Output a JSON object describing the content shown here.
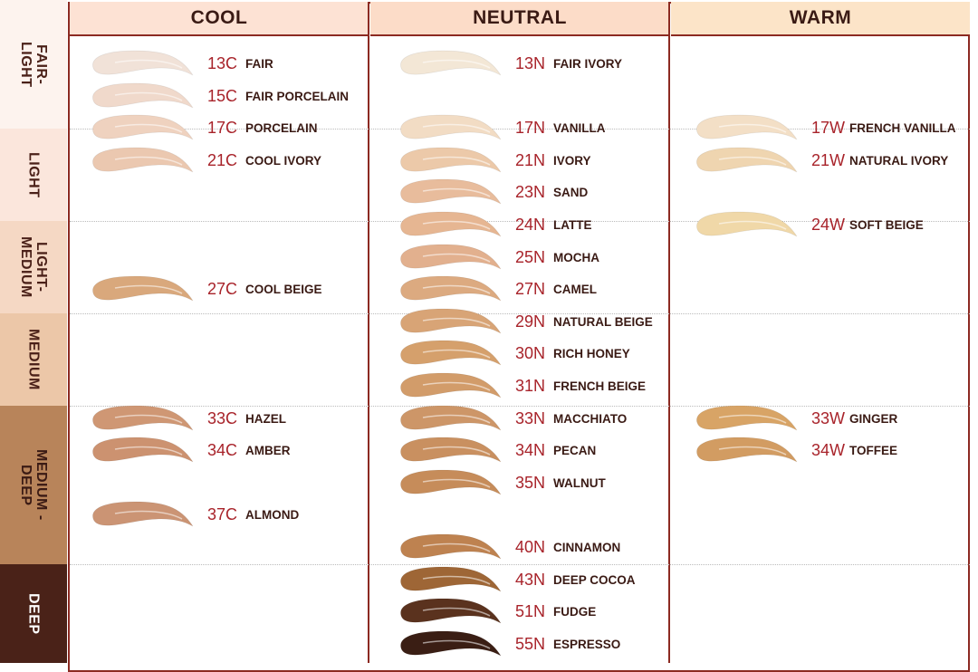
{
  "columns": [
    "COOL",
    "NEUTRAL",
    "WARM"
  ],
  "categories": [
    {
      "label": "FAIR-\nLIGHT",
      "color": "#fdf3ee",
      "text_color": "#4a2018"
    },
    {
      "label": "LIGHT",
      "color": "#fbe6dc",
      "text_color": "#4a2018"
    },
    {
      "label": "LIGHT-\nMEDIUM",
      "color": "#f5d8c4",
      "text_color": "#4a2018"
    },
    {
      "label": "MEDIUM",
      "color": "#ecc7a8",
      "text_color": "#4a2018"
    },
    {
      "label": "MEDIUM -\nDEEP",
      "color": "#b8845a",
      "text_color": "#3a1a14"
    },
    {
      "label": "DEEP",
      "color": "#4a2218",
      "text_color": "#ffffff"
    }
  ],
  "header_colors": [
    "#fde2d4",
    "#fcdcc8",
    "#fce4c8"
  ],
  "accent": "#a8232a",
  "shades": {
    "cool": [
      {
        "code": "13C",
        "name": "FAIR",
        "color": "#f1e2d8"
      },
      {
        "code": "15C",
        "name": "FAIR PORCELAIN",
        "color": "#f0d9cb"
      },
      {
        "code": "17C",
        "name": "PORCELAIN",
        "color": "#efd2bf"
      },
      {
        "code": "21C",
        "name": "COOL IVORY",
        "color": "#ebc8b0"
      },
      {
        "code": "27C",
        "name": "COOL BEIGE",
        "color": "#d9a87c"
      },
      {
        "code": "33C",
        "name": "HAZEL",
        "color": "#cf9774"
      },
      {
        "code": "34C",
        "name": "AMBER",
        "color": "#cc9270"
      },
      {
        "code": "37C",
        "name": "ALMOND",
        "color": "#cb9474"
      }
    ],
    "neutral": [
      {
        "code": "13N",
        "name": "FAIR IVORY",
        "color": "#f3e7d6"
      },
      {
        "code": "17N",
        "name": "VANILLA",
        "color": "#f2dcc4"
      },
      {
        "code": "21N",
        "name": "IVORY",
        "color": "#ecc9a9"
      },
      {
        "code": "23N",
        "name": "SAND",
        "color": "#e8bc9c"
      },
      {
        "code": "24N",
        "name": "LATTE",
        "color": "#e6b692"
      },
      {
        "code": "25N",
        "name": "MOCHA",
        "color": "#e2b08e"
      },
      {
        "code": "27N",
        "name": "CAMEL",
        "color": "#dcaa80"
      },
      {
        "code": "29N",
        "name": "NATURAL BEIGE",
        "color": "#d8a476"
      },
      {
        "code": "30N",
        "name": "RICH HONEY",
        "color": "#d5a06c"
      },
      {
        "code": "31N",
        "name": "FRENCH BEIGE",
        "color": "#d29c6a"
      },
      {
        "code": "33N",
        "name": "MACCHIATO",
        "color": "#cd9668"
      },
      {
        "code": "34N",
        "name": "PECAN",
        "color": "#c99060"
      },
      {
        "code": "35N",
        "name": "WALNUT",
        "color": "#c68c5a"
      },
      {
        "code": "40N",
        "name": "CINNAMON",
        "color": "#be8250"
      },
      {
        "code": "43N",
        "name": "DEEP COCOA",
        "color": "#9e6636"
      },
      {
        "code": "51N",
        "name": "FUDGE",
        "color": "#5a321e"
      },
      {
        "code": "55N",
        "name": "ESPRESSO",
        "color": "#3a1e14"
      }
    ],
    "warm": [
      {
        "code": "17W",
        "name": "FRENCH VANILLA",
        "color": "#f3dfc6"
      },
      {
        "code": "21W",
        "name": "NATURAL IVORY",
        "color": "#efd5b0"
      },
      {
        "code": "24W",
        "name": "SOFT BEIGE",
        "color": "#f0d8a8"
      },
      {
        "code": "33W",
        "name": "GINGER",
        "color": "#d8a466"
      },
      {
        "code": "34W",
        "name": "TOFFEE",
        "color": "#d29c62"
      }
    ]
  }
}
